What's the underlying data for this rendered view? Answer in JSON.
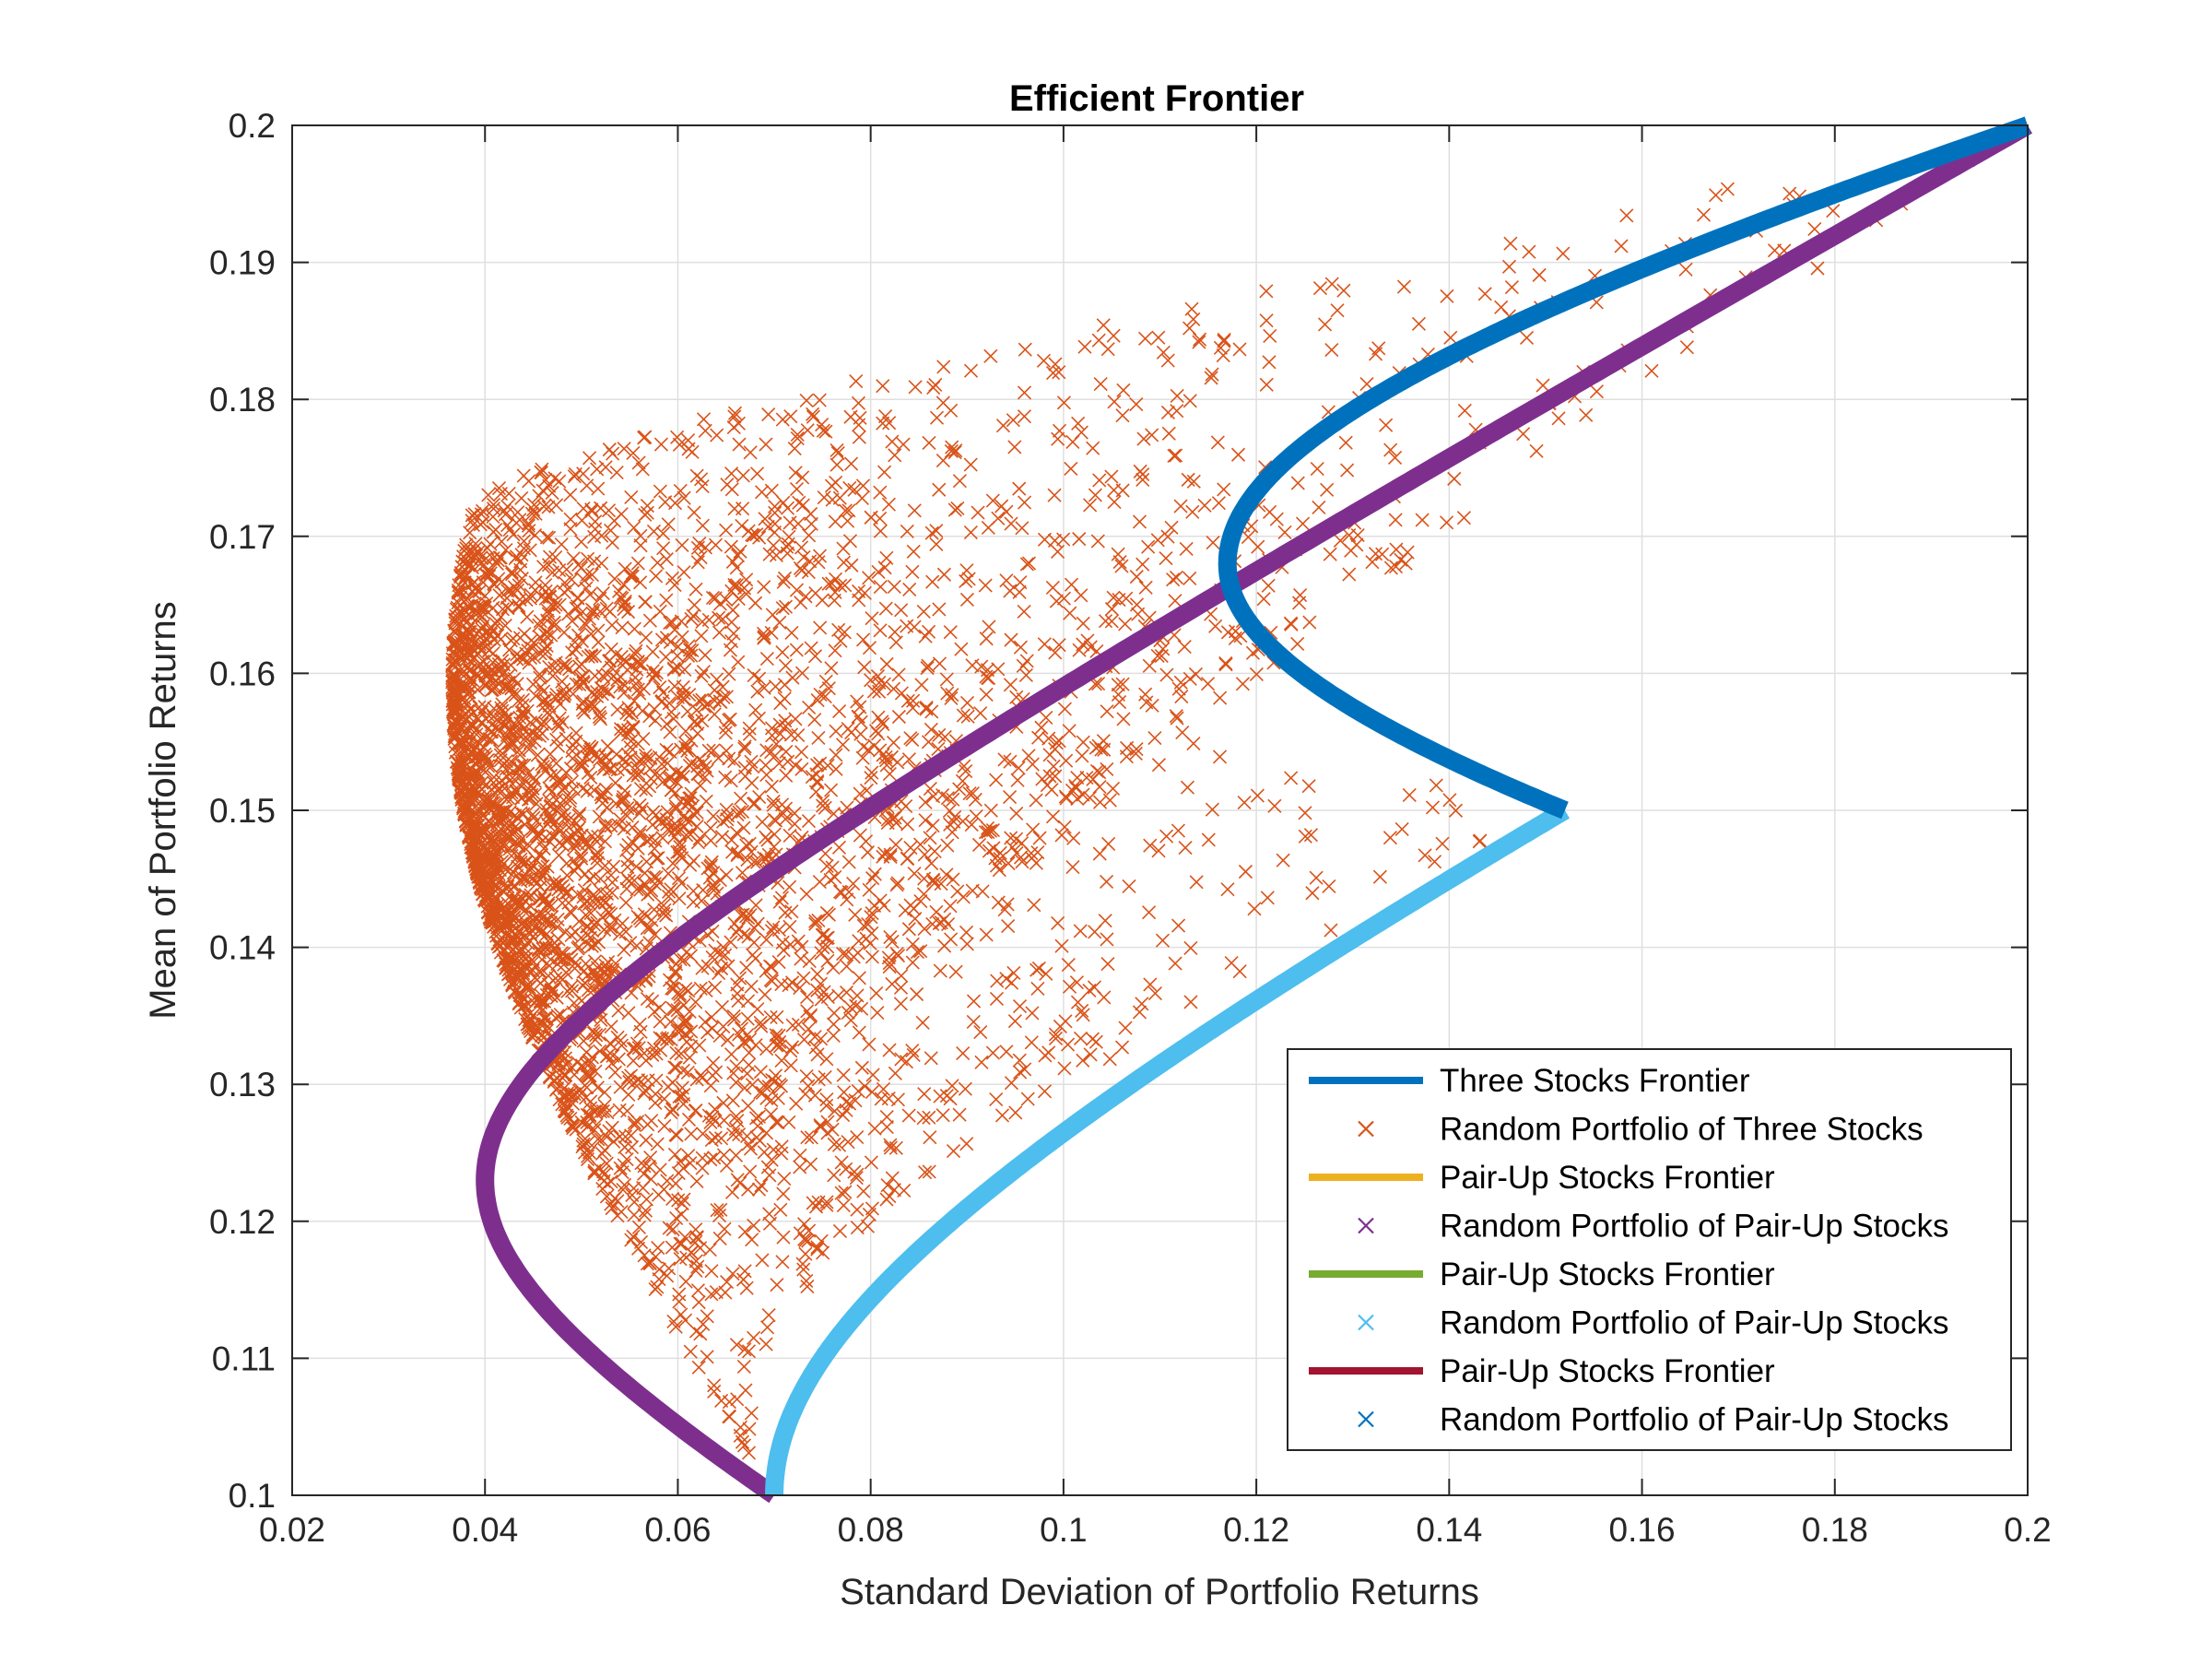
{
  "chart_data": {
    "type": "scatter",
    "title": "Efficient Frontier",
    "xlabel": "Standard Deviation of Portfolio Returns",
    "ylabel": "Mean of Portfolio Returns",
    "xlim": [
      0.02,
      0.2
    ],
    "ylim": [
      0.1,
      0.2
    ],
    "xticks": [
      0.02,
      0.04,
      0.06,
      0.08,
      0.1,
      0.12,
      0.14,
      0.16,
      0.18,
      0.2
    ],
    "yticks": [
      0.1,
      0.11,
      0.12,
      0.13,
      0.14,
      0.15,
      0.16,
      0.17,
      0.18,
      0.19,
      0.2
    ],
    "xtick_labels": [
      "0.02",
      "0.04",
      "0.06",
      "0.08",
      "0.1",
      "0.12",
      "0.14",
      "0.16",
      "0.18",
      "0.2"
    ],
    "ytick_labels": [
      "0.1",
      "0.11",
      "0.12",
      "0.13",
      "0.14",
      "0.15",
      "0.16",
      "0.17",
      "0.18",
      "0.19",
      "0.2"
    ],
    "grid": true,
    "legend_position": "bottom-right",
    "assets": [
      {
        "mean": 0.1,
        "std": 0.07
      },
      {
        "mean": 0.15,
        "std": 0.152
      },
      {
        "mean": 0.2,
        "std": 0.2
      }
    ],
    "frontiers": [
      {
        "name": "Three Stocks Frontier",
        "color": "#0072BD",
        "mean_range": [
          0.15,
          0.2
        ],
        "min_std": 0.117,
        "min_std_mean": 0.168
      },
      {
        "name": "Pair-Up Stocks Frontier",
        "color": "#7E2F8E",
        "mean_range": [
          0.1,
          0.2
        ],
        "min_std": 0.04,
        "min_std_mean": 0.123
      },
      {
        "name": "Pair-Up Stocks Frontier",
        "color": "#4DBEEE",
        "mean_range": [
          0.1,
          0.15
        ],
        "min_std": 0.07,
        "min_std_mean": 0.1
      }
    ],
    "random_portfolios": {
      "color": "#D95319",
      "marker": "x",
      "count": 4000
    },
    "legend": [
      {
        "label": "Three Stocks Frontier",
        "kind": "line",
        "color": "#0072BD"
      },
      {
        "label": "Random Portfolio of Three Stocks",
        "kind": "x",
        "color": "#D95319"
      },
      {
        "label": "Pair-Up Stocks Frontier",
        "kind": "line",
        "color": "#EDB120"
      },
      {
        "label": "Random Portfolio of Pair-Up Stocks",
        "kind": "x",
        "color": "#7E2F8E"
      },
      {
        "label": "Pair-Up Stocks Frontier",
        "kind": "line",
        "color": "#77AC30"
      },
      {
        "label": "Random Portfolio of Pair-Up Stocks",
        "kind": "x",
        "color": "#4DBEEE"
      },
      {
        "label": "Pair-Up Stocks Frontier",
        "kind": "line",
        "color": "#A2142F"
      },
      {
        "label": "Random Portfolio of Pair-Up Stocks",
        "kind": "x",
        "color": "#0072BD"
      }
    ]
  }
}
